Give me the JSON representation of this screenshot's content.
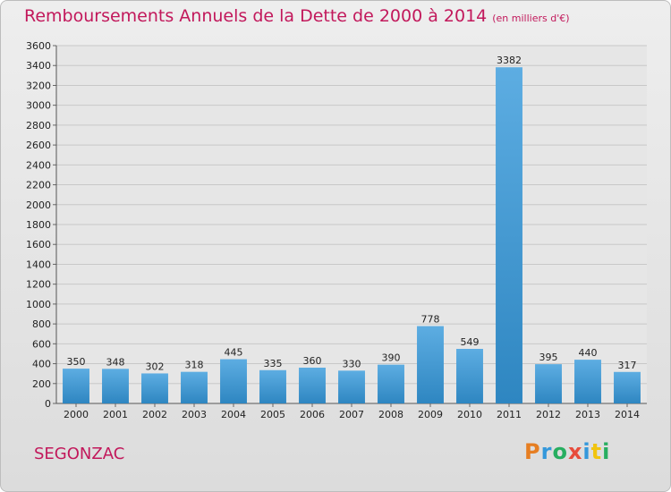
{
  "chart_data": {
    "type": "bar",
    "title": "Remboursements Annuels de la Dette de 2000 à 2014",
    "unit_note": "(en milliers d'€)",
    "categories": [
      "2000",
      "2001",
      "2002",
      "2003",
      "2004",
      "2005",
      "2006",
      "2007",
      "2008",
      "2009",
      "2010",
      "2011",
      "2012",
      "2013",
      "2014"
    ],
    "values": [
      350,
      348,
      302,
      318,
      445,
      335,
      360,
      330,
      390,
      778,
      549,
      3382,
      395,
      440,
      317
    ],
    "yticks": [
      0,
      200,
      400,
      600,
      800,
      1000,
      1200,
      1400,
      1600,
      1800,
      2000,
      2200,
      2400,
      2600,
      2800,
      3000,
      3200,
      3400,
      3600
    ],
    "ylim": [
      0,
      3600
    ],
    "grid": true,
    "bar_color_top": "#5dade2",
    "bar_color_bottom": "#2e86c1"
  },
  "place_name": "SEGONZAC",
  "logo": {
    "letters": [
      "P",
      "r",
      "o",
      "x",
      "i",
      "t",
      "i"
    ],
    "colors": [
      "#e67e22",
      "#3498db",
      "#27ae60",
      "#e74c3c",
      "#3498db",
      "#f1c40f",
      "#27ae60"
    ]
  }
}
